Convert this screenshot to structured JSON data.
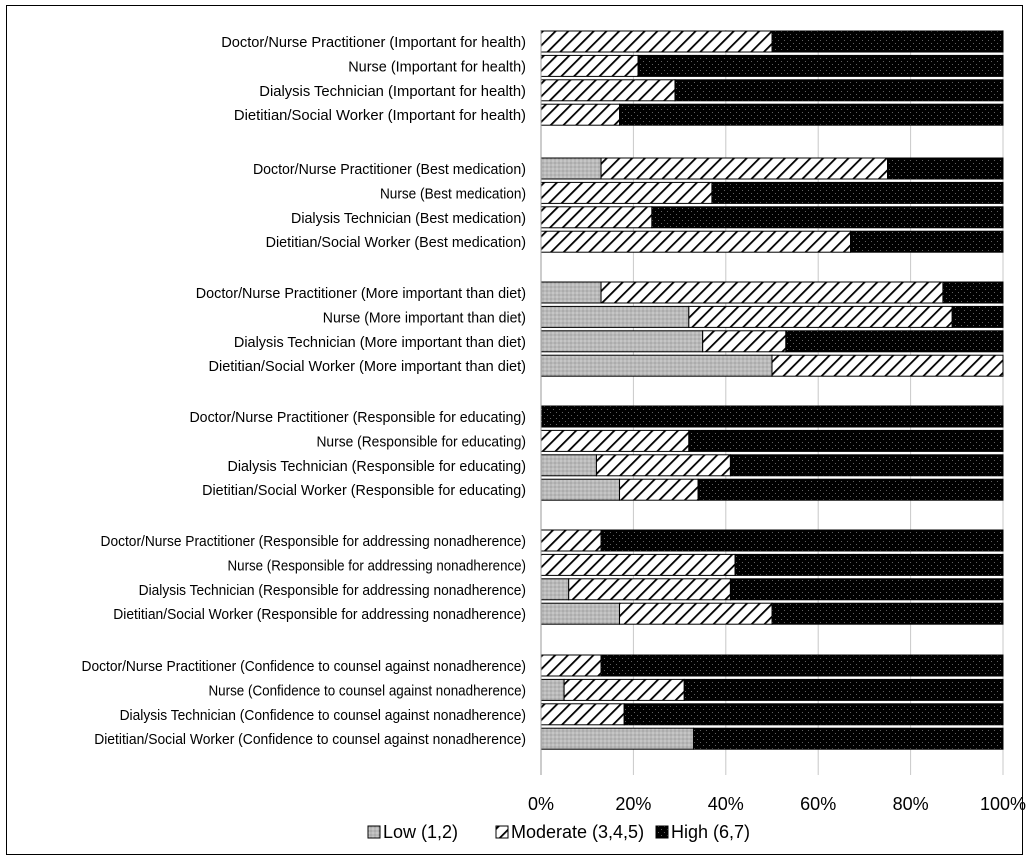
{
  "chart_data": {
    "type": "bar",
    "orientation": "horizontal",
    "stacked": "percent",
    "categories": [
      "Doctor/Nurse Practitioner (Important for health)",
      "Nurse (Important for health)",
      "Dialysis Technician (Important for health)",
      "Dietitian/Social Worker (Important for health)",
      "Doctor/Nurse Practitioner (Best medication)",
      "Nurse (Best medication)",
      "Dialysis Technician (Best medication)",
      "Dietitian/Social Worker (Best medication)",
      "Doctor/Nurse Practitioner (More important than diet)",
      "Nurse (More important than diet)",
      "Dialysis Technician (More important than diet)",
      "Dietitian/Social Worker (More important than diet)",
      "Doctor/Nurse Practitioner (Responsible for educating)",
      "Nurse (Responsible for educating)",
      "Dialysis Technician (Responsible for educating)",
      "Dietitian/Social Worker (Responsible for educating)",
      "Doctor/Nurse Practitioner (Responsible for addressing nonadherence)",
      "Nurse (Responsible for addressing nonadherence)",
      "Dialysis Technician (Responsible for addressing nonadherence)",
      "Dietitian/Social Worker (Responsible for addressing nonadherence)",
      "Doctor/Nurse Practitioner (Confidence to counsel against nonadherence)",
      "Nurse (Confidence to counsel against nonadherence)",
      "Dialysis Technician (Confidence to counsel against nonadherence)",
      "Dietitian/Social Worker (Confidence to counsel against nonadherence)"
    ],
    "groups": [
      4,
      4,
      4,
      4,
      4,
      4
    ],
    "series": [
      {
        "name": "Low (1,2)",
        "color": "#b4b4b4",
        "pattern": "dots-light",
        "values": [
          0,
          0,
          0,
          0,
          13,
          0,
          0,
          0,
          13,
          32,
          35,
          50,
          0,
          0,
          12,
          17,
          0,
          0,
          6,
          17,
          0,
          5,
          0,
          33
        ]
      },
      {
        "name": "Moderate (3,4,5)",
        "color": "#ffffff",
        "pattern": "diagonal-hatch",
        "values": [
          50,
          21,
          29,
          17,
          62,
          37,
          24,
          67,
          74,
          57,
          18,
          50,
          0,
          32,
          29,
          17,
          13,
          42,
          35,
          33,
          13,
          26,
          18,
          0
        ]
      },
      {
        "name": "High (6,7)",
        "color": "#000000",
        "pattern": "dots-dark",
        "values": [
          50,
          79,
          71,
          83,
          25,
          63,
          76,
          33,
          13,
          11,
          47,
          0,
          100,
          68,
          59,
          66,
          87,
          58,
          59,
          50,
          87,
          69,
          82,
          67
        ]
      }
    ],
    "xaxis": {
      "ticks": [
        "0%",
        "20%",
        "40%",
        "60%",
        "80%",
        "100%"
      ],
      "xlim": [
        0,
        100
      ],
      "unit": "%"
    },
    "grid": "vertical",
    "legend": "bottom",
    "title": "",
    "xlabel": "",
    "ylabel": ""
  }
}
